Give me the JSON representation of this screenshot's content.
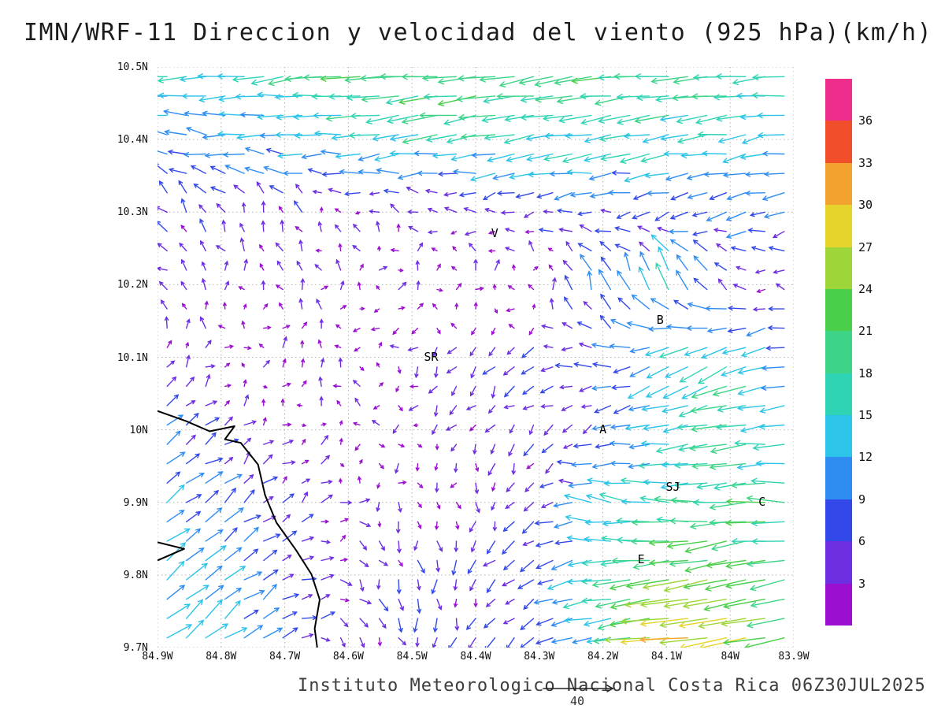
{
  "title": "IMN/WRF-11 Direccion y velocidad del viento (925 hPa)(km/h)",
  "caption": {
    "text": "Instituto Meteorologico Nacional Costa Rica 06Z30JUL2025",
    "reference_label": "40"
  },
  "chart_data": {
    "type": "vector_field",
    "model": "IMN/WRF-11",
    "variable": "Direccion y velocidad del viento",
    "pressure_level_hpa": 925,
    "units": "km/h",
    "valid_time": "06Z30JUL2025",
    "title": "IMN/WRF-11 Direccion y velocidad del viento (925 hPa)(km/h)",
    "source_caption": "Instituto Meteorologico Nacional Costa Rica 06Z30JUL2025",
    "grid_on": true,
    "x_axis": {
      "labels": [
        "84.9W",
        "84.8W",
        "84.7W",
        "84.6W",
        "84.5W",
        "84.4W",
        "84.3W",
        "84.2W",
        "84.1W",
        "84W",
        "83.9W"
      ],
      "values": [
        84.9,
        84.8,
        84.7,
        84.6,
        84.5,
        84.4,
        84.3,
        84.2,
        84.1,
        84.0,
        83.9
      ],
      "lon_west_start": 84.9,
      "lon_west_end": 83.9
    },
    "y_axis": {
      "labels": [
        "10.5N",
        "10.4N",
        "10.3N",
        "10.2N",
        "10.1N",
        "10N",
        "9.9N",
        "9.8N",
        "9.7N"
      ],
      "values": [
        10.5,
        10.4,
        10.3,
        10.2,
        10.1,
        10.0,
        9.9,
        9.8,
        9.7
      ],
      "lat_start": 10.5,
      "lat_end": 9.7
    },
    "colorbar": {
      "position": "right",
      "levels": [
        3,
        6,
        9,
        12,
        15,
        18,
        21,
        24,
        27,
        30,
        33,
        36
      ],
      "colors": [
        "#9b0fd1",
        "#6c2ee0",
        "#3348e8",
        "#2f8df2",
        "#2cc4e8",
        "#2fd4b4",
        "#3dd488",
        "#49cf49",
        "#9ed63a",
        "#e6d42c",
        "#f2a22e",
        "#f14e2c",
        "#ee2d8c"
      ]
    },
    "reference_vector": {
      "speed": 40,
      "label": "40"
    },
    "stations": [
      {
        "label": "V",
        "lon_w": 84.37,
        "lat": 10.27
      },
      {
        "label": "SR",
        "lon_w": 84.47,
        "lat": 10.1
      },
      {
        "label": "B",
        "lon_w": 84.11,
        "lat": 10.15
      },
      {
        "label": "A",
        "lon_w": 84.2,
        "lat": 10.0
      },
      {
        "label": "SJ",
        "lon_w": 84.09,
        "lat": 9.92
      },
      {
        "label": "C",
        "lon_w": 83.95,
        "lat": 9.9
      },
      {
        "label": "E",
        "lon_w": 84.14,
        "lat": 9.82
      }
    ],
    "coastline": [
      [
        [
          84.9,
          10.026
        ],
        [
          84.855,
          10.012
        ],
        [
          84.818,
          9.998
        ],
        [
          84.779,
          10.005
        ],
        [
          84.794,
          9.987
        ],
        [
          84.769,
          9.982
        ],
        [
          84.742,
          9.952
        ],
        [
          84.731,
          9.91
        ],
        [
          84.713,
          9.872
        ],
        [
          84.682,
          9.834
        ],
        [
          84.658,
          9.801
        ],
        [
          84.645,
          9.766
        ],
        [
          84.653,
          9.726
        ],
        [
          84.649,
          9.7
        ]
      ],
      [
        [
          84.9,
          9.845
        ],
        [
          84.858,
          9.836
        ],
        [
          84.9,
          9.82
        ]
      ]
    ],
    "wind_grid": {
      "lon_w": [
        84.9,
        84.8,
        84.7,
        84.6,
        84.5,
        84.4,
        84.3,
        84.2,
        84.1,
        84.0,
        83.9
      ],
      "lat": [
        10.5,
        10.4,
        10.3,
        10.2,
        10.1,
        10.0,
        9.9,
        9.8,
        9.7
      ],
      "u": [
        [
          -14,
          -16,
          -18,
          -20,
          -21,
          -21,
          -20,
          -20,
          -19,
          -18,
          -16
        ],
        [
          -9,
          -11,
          -12,
          -14,
          -16,
          -16,
          -16,
          -15,
          -15,
          -14,
          -13
        ],
        [
          -4,
          -3,
          -2,
          -2,
          -3,
          -4,
          -5,
          -6,
          -7,
          -8,
          -8
        ],
        [
          -2,
          -1,
          0,
          1,
          2,
          1,
          0,
          -3,
          -6,
          -5,
          -4
        ],
        [
          1,
          1,
          0,
          -1,
          -2,
          -3,
          -5,
          -8,
          -13,
          -16,
          -10
        ],
        [
          7,
          4,
          2,
          0,
          -1,
          -2,
          -3,
          -6,
          -12,
          -18,
          -12
        ],
        [
          9,
          7,
          4,
          2,
          1,
          0,
          -4,
          -14,
          -16,
          -18,
          -20
        ],
        [
          11,
          9,
          6,
          3,
          1,
          -2,
          -6,
          -16,
          -22,
          -24,
          -18
        ],
        [
          12,
          10,
          7,
          3,
          0,
          -2,
          -5,
          -12,
          -29,
          -30,
          -20
        ]
      ],
      "v": [
        [
          -2,
          -2,
          -2,
          -2,
          -2,
          -3,
          -3,
          -3,
          -2,
          -2,
          -2
        ],
        [
          2,
          1,
          0,
          -1,
          -2,
          -2,
          -2,
          -2,
          -2,
          -2,
          -2
        ],
        [
          4,
          4,
          3,
          2,
          1,
          0,
          -1,
          -1,
          -2,
          -2,
          -2
        ],
        [
          3,
          3,
          3,
          2,
          2,
          3,
          4,
          8,
          14,
          4,
          0
        ],
        [
          3,
          2,
          2,
          1,
          -2,
          -3,
          -4,
          2,
          -8,
          -8,
          -2
        ],
        [
          5,
          3,
          2,
          1,
          -2,
          -3,
          -3,
          -2,
          -2,
          -4,
          0
        ],
        [
          7,
          5,
          3,
          0,
          -3,
          -4,
          -3,
          3,
          2,
          -2,
          2
        ],
        [
          9,
          7,
          4,
          -2,
          -5,
          -5,
          -4,
          -2,
          -4,
          -6,
          -3
        ],
        [
          8,
          7,
          5,
          -2,
          -5,
          -4,
          -3,
          -4,
          -3,
          -4,
          -3
        ]
      ]
    },
    "render": {
      "nx": 33,
      "ny": 30,
      "jitter": 2.4,
      "arrow_scale": 2.1,
      "arrow_min": 4
    }
  }
}
